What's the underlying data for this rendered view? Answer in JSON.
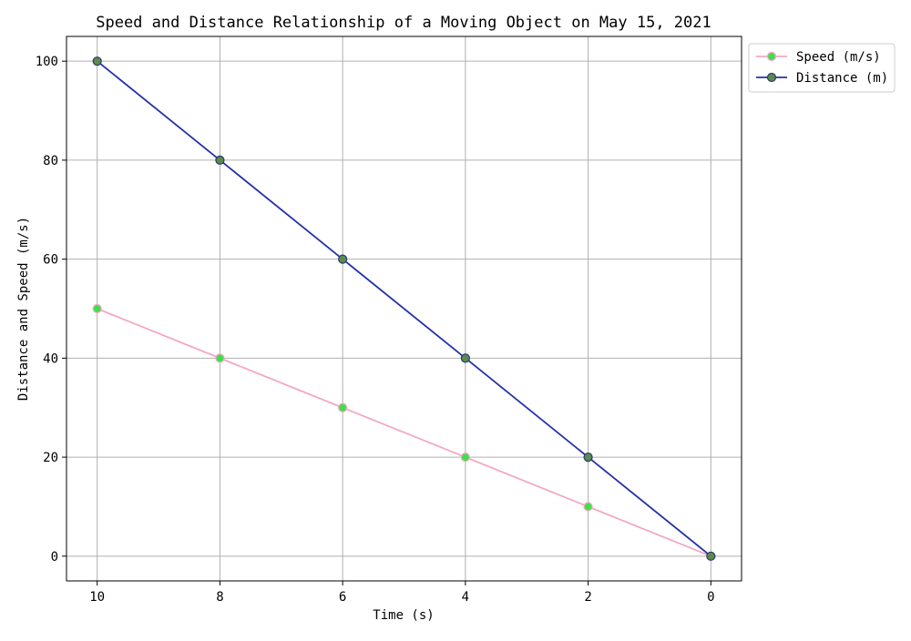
{
  "chart_data": {
    "type": "line",
    "title": "Speed and Distance Relationship of a Moving Object on May 15, 2021",
    "xlabel": "Time (s)",
    "ylabel": "Distance and Speed (m/s)",
    "x": [
      10,
      8,
      6,
      4,
      2,
      0
    ],
    "x_ticks": [
      "10",
      "8",
      "6",
      "4",
      "2",
      "0"
    ],
    "y_ticks": [
      "0",
      "20",
      "40",
      "60",
      "80",
      "100"
    ],
    "x_axis_inverted": true,
    "xlim": [
      10.5,
      -0.5
    ],
    "ylim": [
      -5,
      105
    ],
    "grid": true,
    "legend_position": "outside-top-right",
    "series": [
      {
        "name": "Speed (m/s)",
        "values": [
          50,
          40,
          30,
          20,
          10,
          0
        ],
        "line_color": "#f4a6c6",
        "marker_face_color": "#3ee04a",
        "marker_edge_color": "#f4a6c6",
        "marker": "circle"
      },
      {
        "name": "Distance (m)",
        "values": [
          100,
          80,
          60,
          40,
          20,
          0
        ],
        "line_color": "#2432a8",
        "marker_face_color": "#5b8a4e",
        "marker_edge_color": "#2b3a6a",
        "marker": "circle"
      }
    ]
  }
}
